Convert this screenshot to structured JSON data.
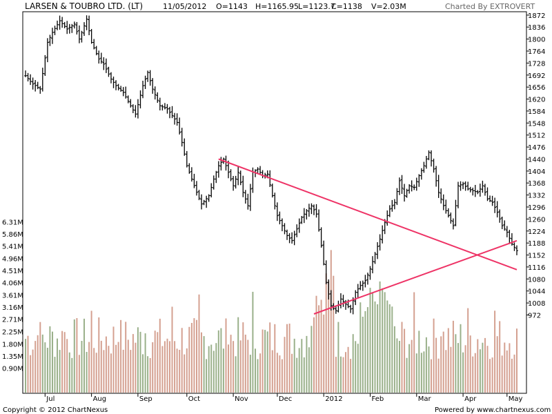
{
  "header": {
    "title": "LARSEN & TOUBRO LTD. (LT)",
    "date": "11/05/2012",
    "open": "O=1143",
    "high": "H=1165.95",
    "low": "L=1123.7",
    "close": "C=1138",
    "volume": "V=2.03M",
    "charted_by": "Charted By EXTROVERT"
  },
  "footer": {
    "copyright": "Copyright © 2012 ChartNexus",
    "powered": "Powered by www.chartnexus.com"
  },
  "colors": {
    "trendline": "#ee3366",
    "vol_up": "#9ab08a",
    "vol_down": "#d4a090",
    "price_bar": "#000000"
  },
  "chart_data": {
    "type": "ohlc-bar-with-volume",
    "price_axis": {
      "ticks": [
        1872,
        1836,
        1800,
        1764,
        1728,
        1692,
        1656,
        1620,
        1584,
        1548,
        1512,
        1476,
        1440,
        1404,
        1368,
        1332,
        1296,
        1260,
        1224,
        1188,
        1152,
        1116,
        1080,
        1044,
        1008,
        972
      ],
      "range": [
        944,
        1880
      ]
    },
    "volume_axis": {
      "tick_labels": [
        "6.31M",
        "5.86M",
        "5.41M",
        "4.96M",
        "4.51M",
        "4.06M",
        "3.61M",
        "3.16M",
        "2.71M",
        "2.25M",
        "1.80M",
        "1.35M",
        "0.90M"
      ],
      "tick_values": [
        6.31,
        5.86,
        5.41,
        4.96,
        4.51,
        4.06,
        3.61,
        3.16,
        2.71,
        2.25,
        1.8,
        1.35,
        0.9
      ],
      "range": [
        0,
        6.6
      ]
    },
    "x_labels": [
      "Jul",
      "Aug",
      "Sep",
      "Oct",
      "Nov",
      "Dec",
      "2012",
      "Feb",
      "Mar",
      "Apr",
      "May"
    ],
    "x_label_index": [
      8,
      27,
      46,
      66,
      85,
      103,
      122,
      141,
      160,
      179,
      197
    ],
    "bar_count": 202,
    "price_anchors": [
      [
        0,
        1690
      ],
      [
        3,
        1665
      ],
      [
        6,
        1650
      ],
      [
        9,
        1790
      ],
      [
        11,
        1820
      ],
      [
        14,
        1855
      ],
      [
        17,
        1830
      ],
      [
        20,
        1845
      ],
      [
        22,
        1800
      ],
      [
        25,
        1860
      ],
      [
        27,
        1790
      ],
      [
        30,
        1740
      ],
      [
        32,
        1725
      ],
      [
        35,
        1680
      ],
      [
        37,
        1660
      ],
      [
        40,
        1640
      ],
      [
        43,
        1600
      ],
      [
        45,
        1575
      ],
      [
        48,
        1660
      ],
      [
        50,
        1700
      ],
      [
        52,
        1650
      ],
      [
        55,
        1600
      ],
      [
        58,
        1590
      ],
      [
        60,
        1570
      ],
      [
        62,
        1550
      ],
      [
        64,
        1490
      ],
      [
        66,
        1420
      ],
      [
        68,
        1380
      ],
      [
        70,
        1340
      ],
      [
        72,
        1305
      ],
      [
        75,
        1330
      ],
      [
        77,
        1380
      ],
      [
        79,
        1420
      ],
      [
        81,
        1440
      ],
      [
        83,
        1400
      ],
      [
        85,
        1360
      ],
      [
        87,
        1400
      ],
      [
        89,
        1340
      ],
      [
        91,
        1300
      ],
      [
        93,
        1400
      ],
      [
        95,
        1410
      ],
      [
        97,
        1390
      ],
      [
        99,
        1395
      ],
      [
        101,
        1330
      ],
      [
        103,
        1270
      ],
      [
        105,
        1240
      ],
      [
        107,
        1210
      ],
      [
        109,
        1195
      ],
      [
        111,
        1230
      ],
      [
        113,
        1265
      ],
      [
        115,
        1285
      ],
      [
        117,
        1300
      ],
      [
        119,
        1275
      ],
      [
        121,
        1180
      ],
      [
        123,
        1070
      ],
      [
        125,
        1000
      ],
      [
        127,
        985
      ],
      [
        129,
        1020
      ],
      [
        131,
        1005
      ],
      [
        133,
        990
      ],
      [
        135,
        1040
      ],
      [
        137,
        1060
      ],
      [
        139,
        1075
      ],
      [
        141,
        1110
      ],
      [
        143,
        1155
      ],
      [
        145,
        1200
      ],
      [
        147,
        1250
      ],
      [
        149,
        1290
      ],
      [
        151,
        1310
      ],
      [
        153,
        1375
      ],
      [
        155,
        1330
      ],
      [
        157,
        1360
      ],
      [
        159,
        1355
      ],
      [
        161,
        1390
      ],
      [
        163,
        1420
      ],
      [
        165,
        1460
      ],
      [
        167,
        1410
      ],
      [
        169,
        1340
      ],
      [
        171,
        1300
      ],
      [
        173,
        1270
      ],
      [
        175,
        1240
      ],
      [
        177,
        1360
      ],
      [
        179,
        1365
      ],
      [
        181,
        1350
      ],
      [
        183,
        1345
      ],
      [
        185,
        1340
      ],
      [
        187,
        1360
      ],
      [
        189,
        1320
      ],
      [
        191,
        1310
      ],
      [
        193,
        1280
      ],
      [
        195,
        1240
      ],
      [
        197,
        1220
      ],
      [
        199,
        1185
      ],
      [
        201,
        1165
      ]
    ],
    "trendlines": [
      {
        "name": "upper",
        "from": [
          79,
          1440
        ],
        "to": [
          201,
          1108
        ]
      },
      {
        "name": "lower",
        "from": [
          118,
          975
        ],
        "to": [
          201,
          1195
        ]
      }
    ],
    "series": [
      {
        "name": "Price (OHLC)",
        "values": "price_anchors"
      },
      {
        "name": "Volume",
        "values": "volume"
      }
    ]
  }
}
